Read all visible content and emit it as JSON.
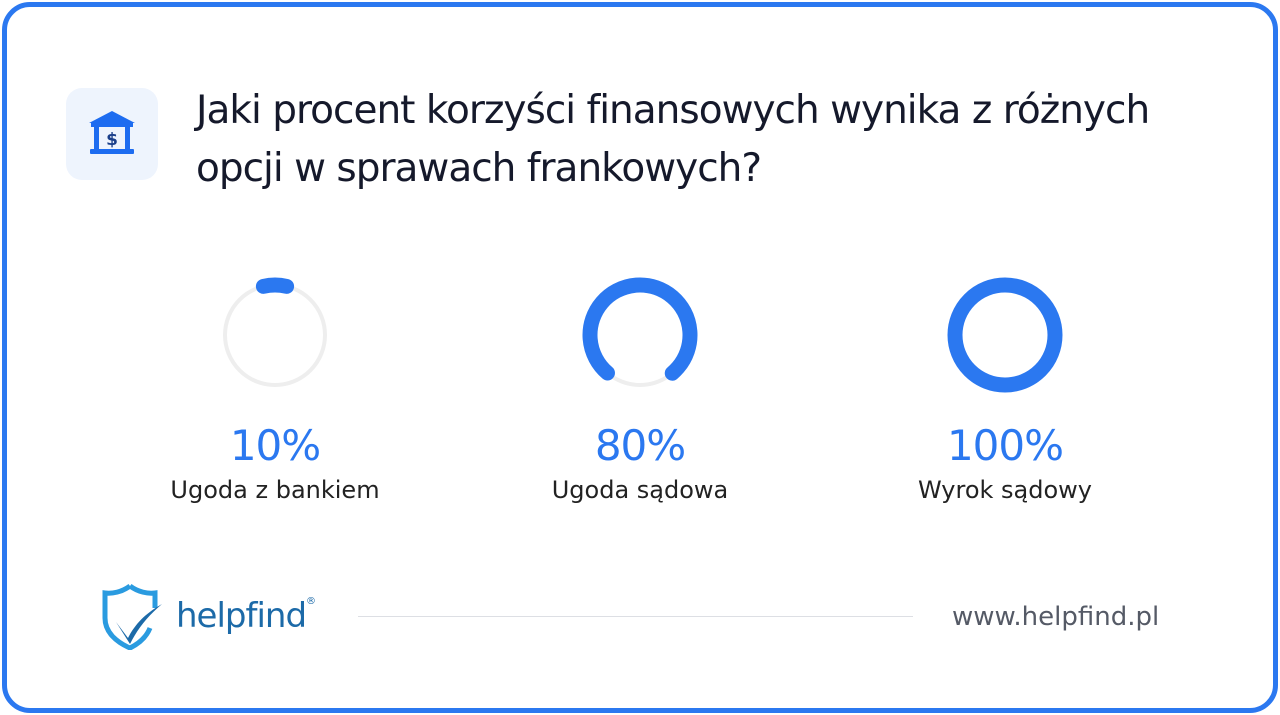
{
  "header": {
    "title": "Jaki procent korzyści finansowych wynika z różnych opcji w sprawach frankowych?",
    "icon": "bank-dollar-icon"
  },
  "chart_data": {
    "type": "gauge",
    "categories": [
      "Ugoda z bankiem",
      "Ugoda sądowa",
      "Wyrok sądowy"
    ],
    "values": [
      10,
      80,
      100
    ],
    "labels": [
      "10%",
      "80%",
      "100%"
    ],
    "unit": "%",
    "range": [
      0,
      100
    ],
    "colors": {
      "fill": "#2b78f0",
      "track": "#eeeeee"
    }
  },
  "footer": {
    "brand": "helpfind",
    "registered": "®",
    "url": "www.helpfind.pl",
    "logo_icon": "shield-check-icon"
  }
}
